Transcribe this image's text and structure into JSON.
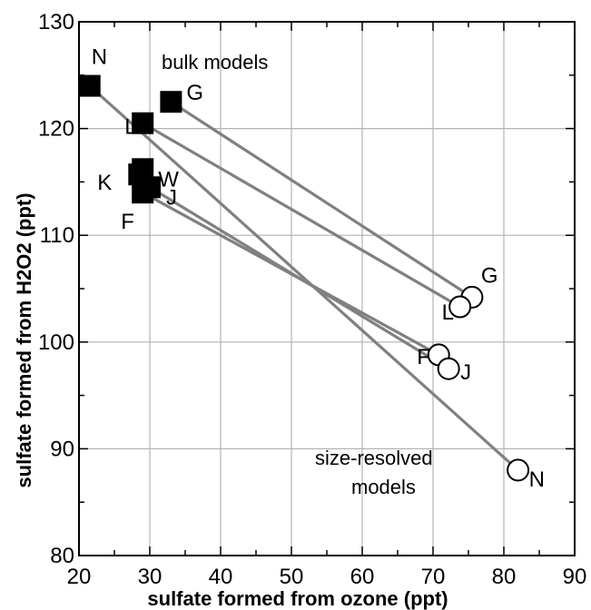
{
  "chart_data": {
    "type": "scatter",
    "title": "",
    "xlabel": "sulfate formed from ozone (ppt)",
    "ylabel": "sulfate formed from H2O2 (ppt)",
    "xlim": [
      20,
      90
    ],
    "ylim": [
      80,
      130
    ],
    "xticks": [
      20,
      30,
      40,
      50,
      60,
      70,
      80,
      90
    ],
    "yticks": [
      80,
      90,
      100,
      110,
      120,
      130
    ],
    "grid": true,
    "annotations": [
      "bulk models",
      "size-resolved models"
    ],
    "series": [
      {
        "name": "bulk models",
        "marker": "filled-square",
        "points": [
          {
            "label": "N",
            "x": 21.5,
            "y": 124
          },
          {
            "label": "G",
            "x": 33,
            "y": 122.5
          },
          {
            "label": "L",
            "x": 29,
            "y": 120.5
          },
          {
            "label": "W",
            "x": 29,
            "y": 116.2
          },
          {
            "label": "K",
            "x": 28.5,
            "y": 115.7
          },
          {
            "label": "J",
            "x": 30,
            "y": 114.5
          },
          {
            "label": "F",
            "x": 29,
            "y": 114
          }
        ]
      },
      {
        "name": "size-resolved models",
        "marker": "open-circle",
        "points": [
          {
            "label": "G",
            "x": 75.5,
            "y": 104.2
          },
          {
            "label": "L",
            "x": 73.8,
            "y": 103.3
          },
          {
            "label": "F",
            "x": 70.8,
            "y": 98.8
          },
          {
            "label": "J",
            "x": 72.2,
            "y": 97.5
          },
          {
            "label": "N",
            "x": 82,
            "y": 88
          }
        ]
      }
    ],
    "connections": [
      {
        "from": "N",
        "to": "N"
      },
      {
        "from": "G",
        "to": "G"
      },
      {
        "from": "L",
        "to": "L"
      },
      {
        "from": "F",
        "to": "F"
      },
      {
        "from": "J",
        "to": "J"
      }
    ],
    "colors": {
      "line": "#808080",
      "grid": "#b3b3b3",
      "marker": "#000000"
    }
  }
}
